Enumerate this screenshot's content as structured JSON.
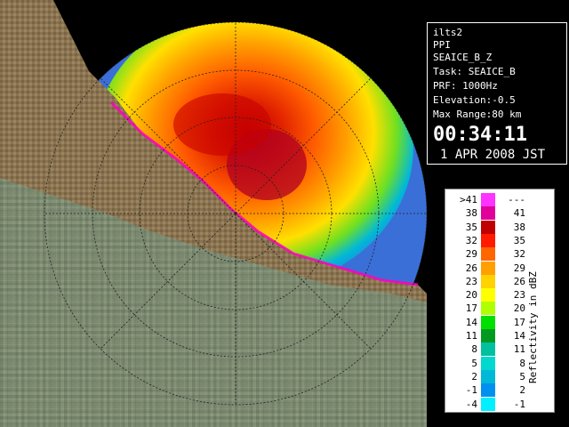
{
  "info": {
    "station": "ilts2",
    "mode": "PPI",
    "product": "SEAICE_B_Z",
    "task": "Task: SEAICE_B",
    "prf": "PRF: 1000Hz",
    "elevation": "Elevation:-0.5",
    "max_range": "Max Range:80 km",
    "time": "00:34:11",
    "date": "1 APR 2008 JST"
  },
  "legend": {
    "title": "Reflectivity in dBZ",
    "rows": [
      {
        "left": ">41",
        "right": "---",
        "color": "#ff33ff"
      },
      {
        "left": "38",
        "right": "41",
        "color": "#e0009a"
      },
      {
        "left": "35",
        "right": "38",
        "color": "#c00000"
      },
      {
        "left": "32",
        "right": "35",
        "color": "#ff1a00"
      },
      {
        "left": "29",
        "right": "32",
        "color": "#ff6600"
      },
      {
        "left": "26",
        "right": "29",
        "color": "#ffa000"
      },
      {
        "left": "23",
        "right": "26",
        "color": "#ffd200"
      },
      {
        "left": "20",
        "right": "23",
        "color": "#ffff00"
      },
      {
        "left": "17",
        "right": "20",
        "color": "#b0ff00"
      },
      {
        "left": "14",
        "right": "17",
        "color": "#00e000"
      },
      {
        "left": "11",
        "right": "14",
        "color": "#009a20"
      },
      {
        "left": "8",
        "right": "11",
        "color": "#00c0a0"
      },
      {
        "left": "5",
        "right": "8",
        "color": "#00d8d0"
      },
      {
        "left": "2",
        "right": "5",
        "color": "#00b8d8"
      },
      {
        "left": "-1",
        "right": "2",
        "color": "#0090f0"
      },
      {
        "left": "-4",
        "right": "-1",
        "color": "#00f0ff"
      }
    ]
  },
  "colors": {
    "land": "#8a7350",
    "background": "#000000",
    "far_echo": "#3a6fd8",
    "near_echo": "#00c8e8"
  }
}
